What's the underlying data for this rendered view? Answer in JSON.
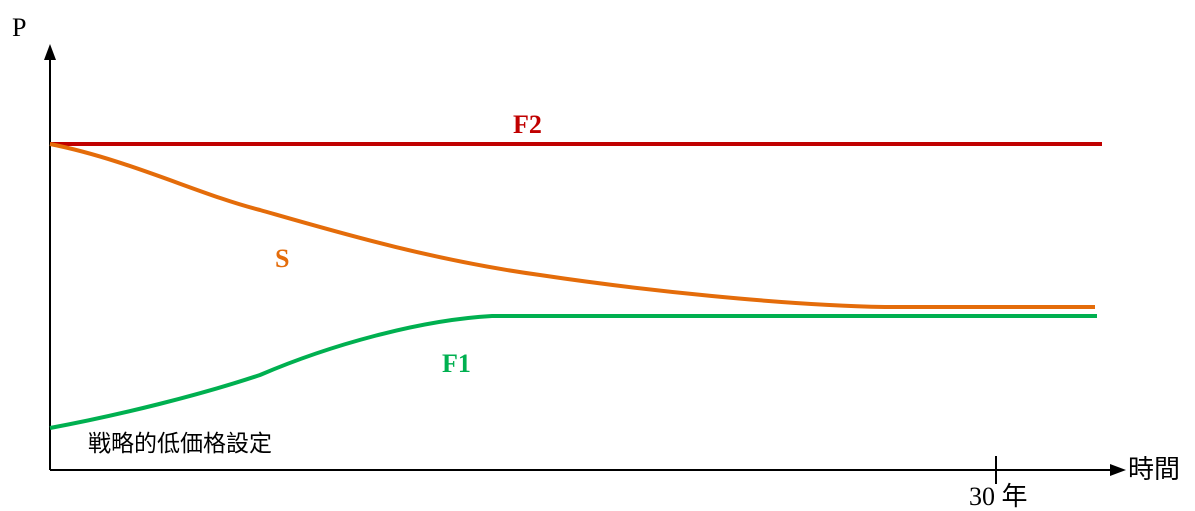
{
  "axes": {
    "y_label": "P",
    "x_label": "時間",
    "tick_label": "30 年"
  },
  "curves": {
    "f2": {
      "label": "F2",
      "color": "#c00000"
    },
    "s": {
      "label": "S",
      "color": "#e46c0a"
    },
    "f1": {
      "label": "F1",
      "color": "#00b050"
    }
  },
  "annotation": "戦略的低価格設定",
  "colors": {
    "axis": "#000000"
  }
}
